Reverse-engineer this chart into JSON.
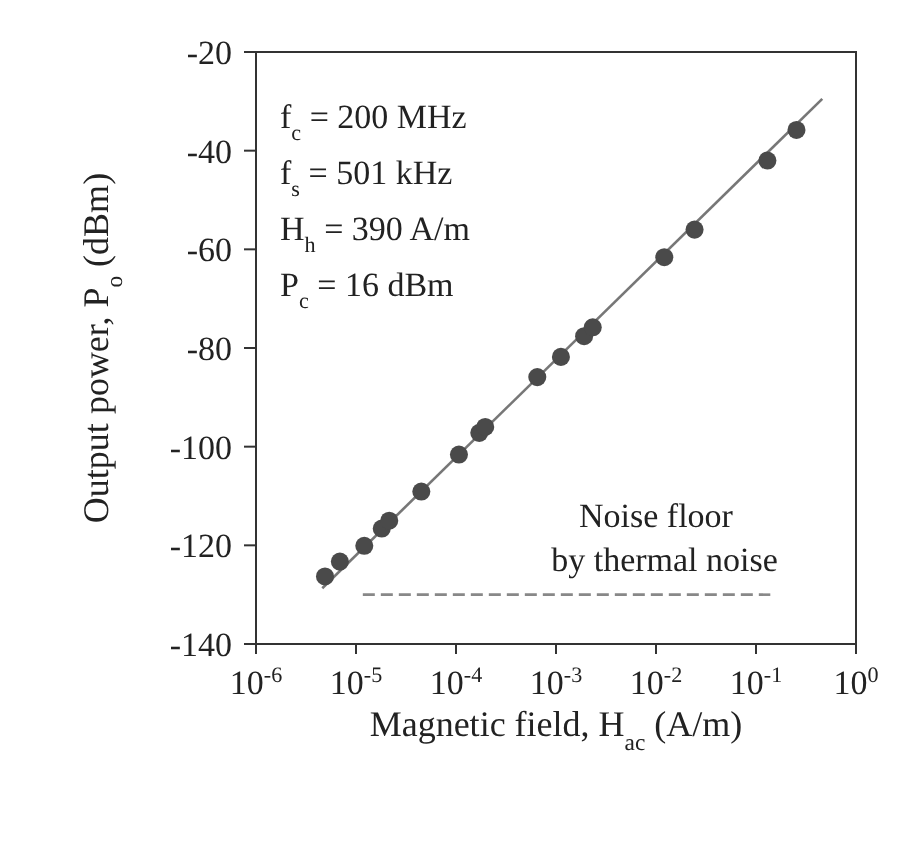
{
  "chart_data": {
    "type": "scatter",
    "xlabel": "Magnetic field, H$_{ac}$ (A/m)",
    "ylabel": "Output power, P$_{o}$ (dBm)",
    "log": "x",
    "xlim": [
      1e-06,
      1
    ],
    "ylim": [
      -140,
      -20
    ],
    "xticks": [
      {
        "value": 1e-06,
        "label": "10$^{-6}$"
      },
      {
        "value": 1e-05,
        "label": "10$^{-5}$"
      },
      {
        "value": 0.0001,
        "label": "10$^{-4}$"
      },
      {
        "value": 0.001,
        "label": "10$^{-3}$"
      },
      {
        "value": 0.01,
        "label": "10$^{-2}$"
      },
      {
        "value": 0.1,
        "label": "10$^{-1}$"
      },
      {
        "value": 1,
        "label": "10$^{0}$"
      }
    ],
    "yticks": [
      -140,
      -120,
      -100,
      -80,
      -60,
      -40,
      -20
    ],
    "marker": "circle",
    "series": [
      {
        "color": "#4a4a4a",
        "x": [
          4.9e-06,
          6.9e-06,
          1.21e-05,
          1.81e-05,
          2.15e-05,
          4.5e-05,
          0.000107,
          0.000171,
          0.000196,
          0.00065,
          0.00112,
          0.00191,
          0.00233,
          0.0121,
          0.0243,
          0.13,
          0.254
        ],
        "values": [
          -126.3,
          -123.3,
          -120.1,
          -116.6,
          -115,
          -109.1,
          -101.6,
          -97.2,
          -96,
          -85.9,
          -81.8,
          -77.6,
          -75.8,
          -61.6,
          -56,
          -42,
          -35.8
        ]
      },
      {
        "type": "line",
        "color": "#777777",
        "marker": "none",
        "line_style": "solid",
        "x": [
          4.6e-06,
          0.46
        ],
        "values": [
          -128.7,
          -29.5
        ]
      },
      {
        "type": "line",
        "color": "#888888",
        "marker": "none",
        "line_style": "dashed",
        "x": [
          1.17e-05,
          0.139
        ],
        "values": [
          -130,
          -130
        ]
      }
    ],
    "annotations": [
      "f$_{c}$ = 200 MHz",
      "f$_{s}$ = 501 kHz",
      "H$_{h}$ = 390 A/m",
      "P$_{c}$ = 16 dBm",
      {
        "text": "Noise floor\n  by thermal noise",
        "x": 0.01,
        "y": -130
      }
    ]
  }
}
